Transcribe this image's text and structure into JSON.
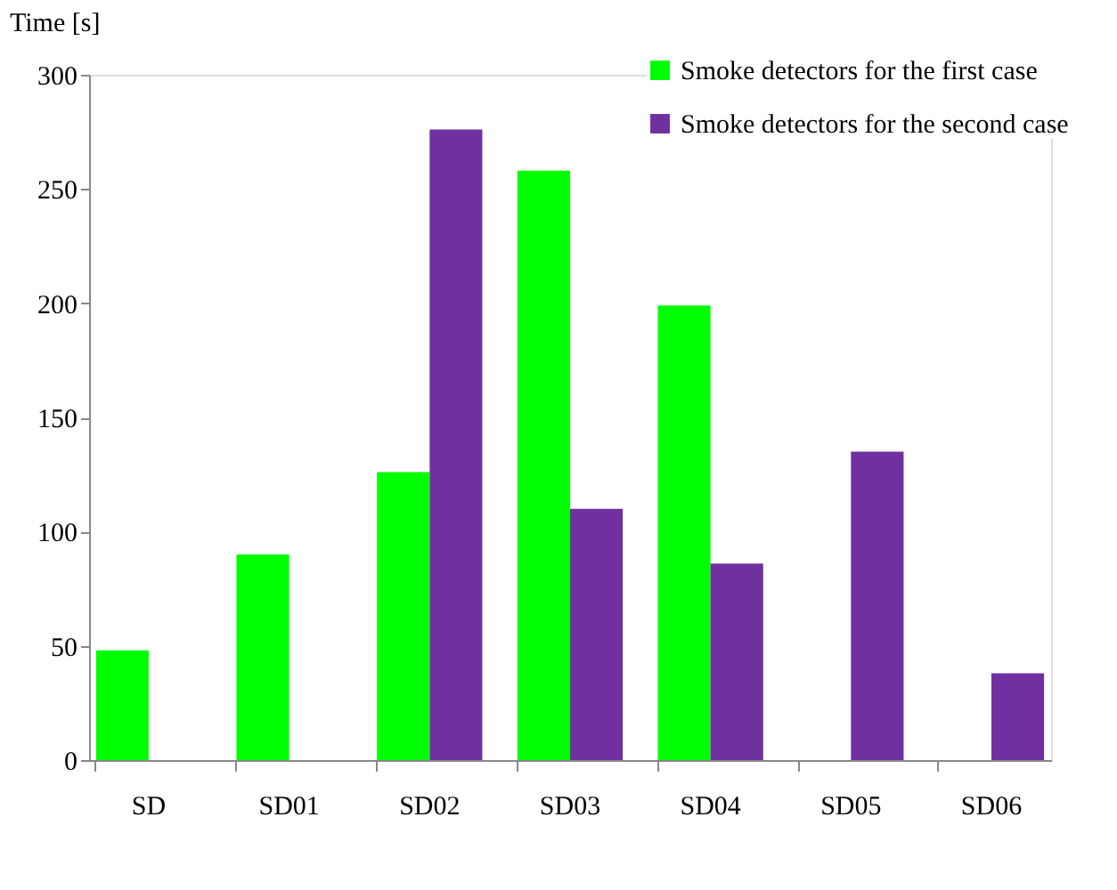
{
  "chart_data": {
    "type": "bar",
    "ylabel": "Time [s]",
    "categories": [
      "SD",
      "SD01",
      "SD02",
      "SD03",
      "SD04",
      "SD05",
      "SD06"
    ],
    "series": [
      {
        "name": "Smoke detectors for the first case",
        "color": "#00ff00",
        "values": [
          48,
          90,
          126,
          258,
          199,
          null,
          null
        ]
      },
      {
        "name": "Smoke detectors for the second case",
        "color": "#7030a0",
        "values": [
          null,
          null,
          276,
          110,
          86,
          135,
          38
        ]
      }
    ],
    "ylim": [
      0,
      300
    ],
    "yticks": [
      0,
      50,
      100,
      150,
      200,
      250,
      300
    ],
    "grid": false,
    "legend": "top right"
  }
}
